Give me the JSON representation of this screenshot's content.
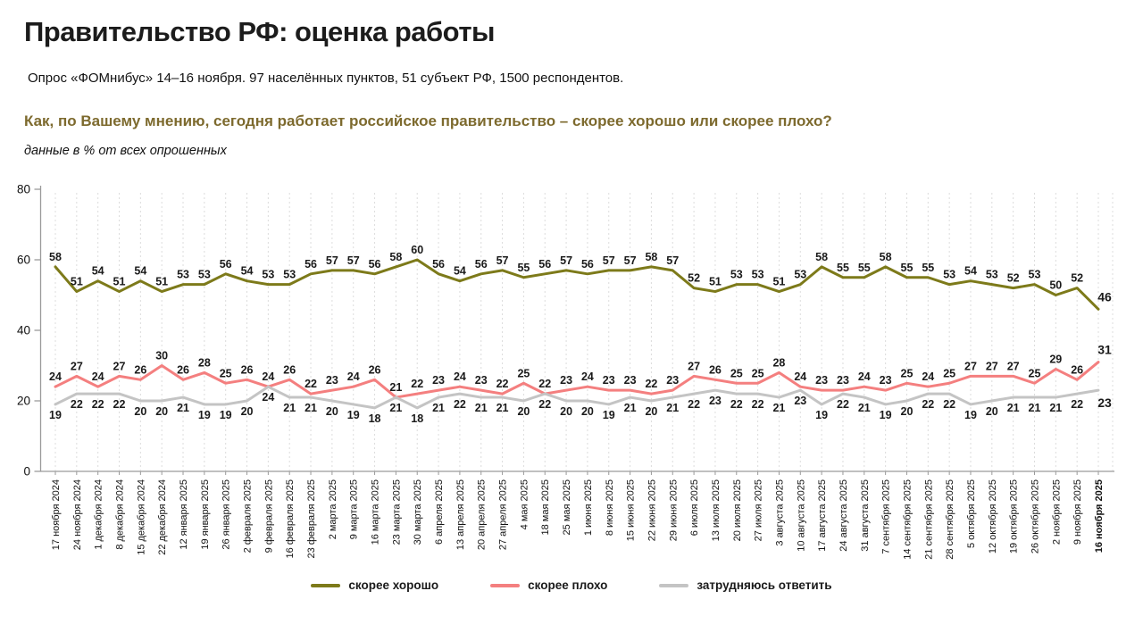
{
  "header": {
    "title": "Правительство РФ: оценка работы",
    "subtitle": "Опрос «ФОМнибус» 14–16 ноября. 97 населённых пунктов, 51 субъект РФ, 1500 респондентов.",
    "question": "Как, по Вашему мнению, сегодня работает российское правительство – скорее хорошо или скорее плохо?",
    "note": "данные в % от всех опрошенных"
  },
  "chart_data": {
    "type": "line",
    "title": "Правительство РФ: оценка работы",
    "xlabel": "",
    "ylabel": "",
    "ylim": [
      0,
      80
    ],
    "yticks": [
      0,
      20,
      40,
      60,
      80
    ],
    "grid": "vertical-dashed",
    "legend_position": "bottom",
    "value_labels": true,
    "last_point_emphasized": true,
    "categories": [
      "17 ноября 2024",
      "24 ноября 2024",
      "1 декабря 2024",
      "8 декабря 2024",
      "15 декабря 2024",
      "22 декабря 2024",
      "12 января 2025",
      "19 января 2025",
      "26 января 2025",
      "2 февраля 2025",
      "9 февраля 2025",
      "16 февраля 2025",
      "23 февраля 2025",
      "2 марта 2025",
      "9 марта 2025",
      "16 марта 2025",
      "23 марта 2025",
      "30 марта 2025",
      "6 апреля 2025",
      "13 апреля 2025",
      "20 апреля 2025",
      "27 апреля 2025",
      "4 мая 2025",
      "18 мая 2025",
      "25 мая 2025",
      "1 июня 2025",
      "8 июня 2025",
      "15 июня 2025",
      "22 июня 2025",
      "29 июня 2025",
      "6 июля 2025",
      "13 июля 2025",
      "20 июля 2025",
      "27 июля 2025",
      "3 августа 2025",
      "10 августа 2025",
      "17 августа 2025",
      "24 августа 2025",
      "31 августа 2025",
      "7 сентября 2025",
      "14 сентября 2025",
      "21 сентября 2025",
      "28 сентября 2025",
      "5 октября 2025",
      "12 октября 2025",
      "19 октября 2025",
      "26 октября 2025",
      "2 ноября 2025",
      "9 ноября 2025",
      "16 ноября 2025"
    ],
    "series": [
      {
        "name": "скорее хорошо",
        "color": "#7d7a1a",
        "label_side": "above",
        "values": [
          58,
          51,
          54,
          51,
          54,
          51,
          53,
          53,
          56,
          54,
          53,
          53,
          56,
          57,
          57,
          56,
          58,
          60,
          56,
          54,
          56,
          57,
          55,
          56,
          57,
          56,
          57,
          57,
          58,
          57,
          52,
          51,
          53,
          53,
          51,
          53,
          58,
          55,
          55,
          58,
          55,
          55,
          53,
          54,
          53,
          52,
          53,
          50,
          52,
          46
        ]
      },
      {
        "name": "скорее плохо",
        "color": "#f47f7f",
        "label_side": "above",
        "values": [
          24,
          27,
          24,
          27,
          26,
          30,
          26,
          28,
          25,
          26,
          24,
          26,
          22,
          23,
          24,
          26,
          21,
          22,
          23,
          24,
          23,
          22,
          25,
          22,
          23,
          24,
          23,
          23,
          22,
          23,
          27,
          26,
          25,
          25,
          28,
          24,
          23,
          23,
          24,
          23,
          25,
          24,
          25,
          27,
          27,
          27,
          25,
          29,
          26,
          31
        ]
      },
      {
        "name": "затрудняюсь ответить",
        "color": "#c4c4c4",
        "label_side": "below",
        "values": [
          19,
          22,
          22,
          22,
          20,
          20,
          21,
          19,
          19,
          20,
          24,
          21,
          21,
          20,
          19,
          18,
          21,
          18,
          21,
          22,
          21,
          21,
          20,
          22,
          20,
          20,
          19,
          21,
          20,
          21,
          22,
          23,
          22,
          22,
          21,
          23,
          19,
          22,
          21,
          19,
          20,
          22,
          22,
          19,
          20,
          21,
          21,
          21,
          22,
          23
        ]
      }
    ]
  }
}
